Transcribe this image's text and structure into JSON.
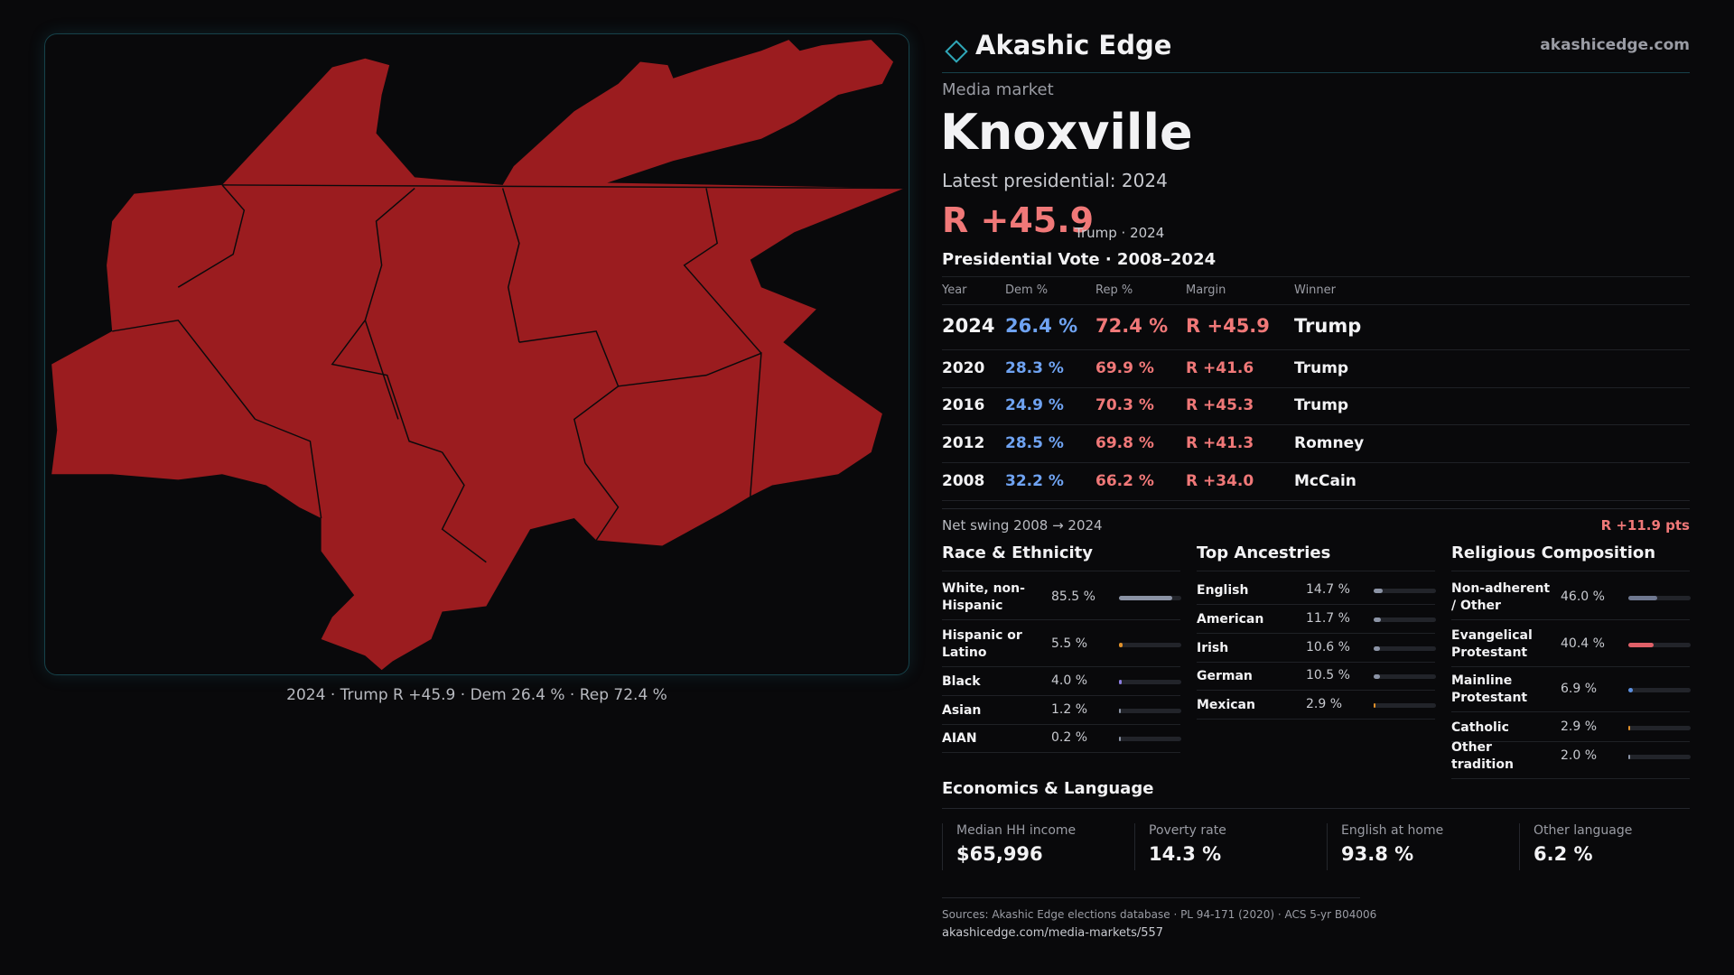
{
  "header": {
    "brand": "Akashic Edge",
    "site": "akashicedge.com"
  },
  "map": {
    "caption": "2024 · Trump R +45.9 · Dem 26.4 % · Rep 72.4 %"
  },
  "market": {
    "label": "Media market",
    "name": "Knoxville",
    "latest": "Latest presidential: 2024",
    "margin": "R +45.9",
    "winner_note": "Trump · 2024"
  },
  "votes": {
    "title": "Presidential Vote · 2008–2024",
    "columns": [
      "Year",
      "Dem %",
      "Rep %",
      "Margin",
      "Winner"
    ],
    "rows": [
      [
        "2024",
        "26.4 %",
        "72.4 %",
        "R +45.9",
        "Trump"
      ],
      [
        "2020",
        "28.3 %",
        "69.9 %",
        "R +41.6",
        "Trump"
      ],
      [
        "2016",
        "24.9 %",
        "70.3 %",
        "R +45.3",
        "Trump"
      ],
      [
        "2012",
        "28.5 %",
        "69.8 %",
        "R +41.3",
        "Romney"
      ],
      [
        "2008",
        "32.2 %",
        "66.2 %",
        "R +34.0",
        "McCain"
      ]
    ]
  },
  "swing": {
    "label": "Net swing 2008 → 2024",
    "value": "R +11.9 pts"
  },
  "race": {
    "title": "Race & Ethnicity",
    "rows": [
      {
        "name": "White, non-Hispanic",
        "share": {
          "value": 85.5,
          "label": "85.5 %"
        },
        "color": "#8b93a5"
      },
      {
        "name": "Hispanic or Latino",
        "share": {
          "value": 5.5,
          "label": "5.5 %"
        },
        "color": "#e0902a"
      },
      {
        "name": "Black",
        "share": {
          "value": 4.0,
          "label": "4.0 %"
        },
        "color": "#8c7de0"
      },
      {
        "name": "Asian",
        "share": {
          "value": 1.2,
          "label": "1.2 %"
        },
        "color": "#8b93a5"
      },
      {
        "name": "AIAN",
        "share": {
          "value": 0.2,
          "label": "0.2 %"
        },
        "color": "#8b93a5"
      }
    ]
  },
  "ancestry": {
    "title": "Top Ancestries",
    "rows": [
      {
        "name": "English",
        "share": {
          "value": 14.7,
          "label": "14.7 %"
        },
        "color": "#8b93a5"
      },
      {
        "name": "American",
        "share": {
          "value": 11.7,
          "label": "11.7 %"
        },
        "color": "#8b93a5"
      },
      {
        "name": "Irish",
        "share": {
          "value": 10.6,
          "label": "10.6 %"
        },
        "color": "#8b93a5"
      },
      {
        "name": "German",
        "share": {
          "value": 10.5,
          "label": "10.5 %"
        },
        "color": "#8b93a5"
      },
      {
        "name": "Mexican",
        "share": {
          "value": 2.9,
          "label": "2.9 %"
        },
        "color": "#e0902a"
      }
    ]
  },
  "religion": {
    "title": "Religious Composition",
    "rows": [
      {
        "name": "Non-adherent / Other",
        "share": {
          "value": 46.0,
          "label": "46.0 %"
        },
        "color": "#6f7890"
      },
      {
        "name": "Evangelical Protestant",
        "share": {
          "value": 40.4,
          "label": "40.4 %"
        },
        "color": "#e06068"
      },
      {
        "name": "Mainline Protestant",
        "share": {
          "value": 6.9,
          "label": "6.9 %"
        },
        "color": "#5b8fe0"
      },
      {
        "name": "Catholic",
        "share": {
          "value": 2.9,
          "label": "2.9 %"
        },
        "color": "#e0902a"
      },
      {
        "name": "Other tradition",
        "share": {
          "value": 2.0,
          "label": "2.0 %"
        },
        "color": "#8b93a5"
      }
    ]
  },
  "economics": {
    "title": "Economics & Language",
    "items": [
      {
        "label": "Median HH income",
        "value": "$65,996"
      },
      {
        "label": "Poverty rate",
        "value": "14.3 %"
      },
      {
        "label": "English at home",
        "value": "93.8 %"
      },
      {
        "label": "Other language",
        "value": "6.2 %"
      }
    ]
  },
  "sources": {
    "text": "Sources: Akashic Edge elections database · PL 94-171 (2020) · ACS 5-yr B04006",
    "url": "akashicedge.com/media-markets/557"
  }
}
